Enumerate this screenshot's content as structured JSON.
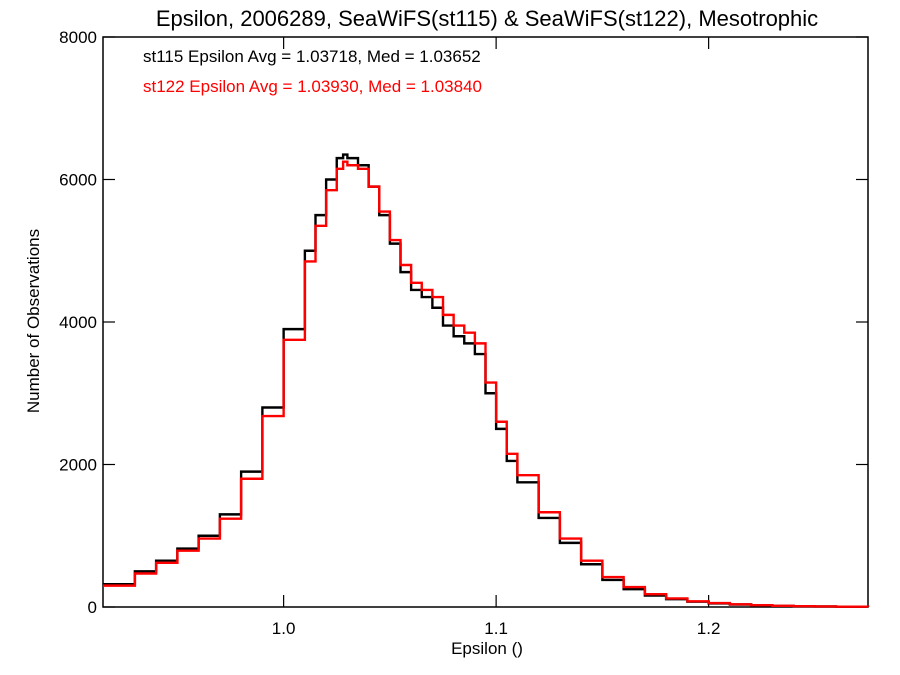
{
  "chart_data": {
    "type": "line",
    "title": "Epsilon, 2006289, SeaWiFS(st115) & SeaWiFS(st122), Mesotrophic",
    "xlabel": "Epsilon ()",
    "ylabel": "Number of Observations",
    "xlim": [
      0.915,
      1.275
    ],
    "ylim": [
      0,
      8000
    ],
    "x_ticks": [
      1.0,
      1.1,
      1.2
    ],
    "x_tick_labels": [
      "1.0",
      "1.1",
      "1.2"
    ],
    "y_ticks": [
      0,
      2000,
      4000,
      6000,
      8000
    ],
    "y_tick_labels": [
      "0",
      "2000",
      "4000",
      "6000",
      "8000"
    ],
    "grid": false,
    "legend_position": "top-left",
    "annotations": [
      {
        "text": "st115 Epsilon Avg = 1.03718, Med = 1.03652",
        "color": "#000000"
      },
      {
        "text": "st122 Epsilon Avg = 1.03930, Med = 1.03840",
        "color": "#ff0000"
      }
    ],
    "series": [
      {
        "color": "#000000",
        "x": [
          0.915,
          0.93,
          0.94,
          0.95,
          0.96,
          0.97,
          0.98,
          0.99,
          1.0,
          1.01,
          1.015,
          1.02,
          1.025,
          1.028,
          1.03,
          1.035,
          1.04,
          1.045,
          1.05,
          1.055,
          1.06,
          1.065,
          1.07,
          1.075,
          1.08,
          1.085,
          1.09,
          1.095,
          1.1,
          1.105,
          1.11,
          1.12,
          1.13,
          1.14,
          1.15,
          1.16,
          1.17,
          1.18,
          1.19,
          1.2,
          1.21,
          1.22,
          1.23,
          1.24,
          1.25,
          1.26,
          1.275
        ],
        "y": [
          320,
          500,
          650,
          820,
          1000,
          1300,
          1900,
          2800,
          3900,
          5000,
          5500,
          6000,
          6300,
          6350,
          6300,
          6200,
          5900,
          5500,
          5100,
          4700,
          4450,
          4350,
          4200,
          3950,
          3800,
          3700,
          3550,
          3000,
          2500,
          2050,
          1750,
          1250,
          900,
          600,
          380,
          250,
          160,
          110,
          75,
          50,
          35,
          25,
          15,
          10,
          8,
          5,
          3
        ]
      },
      {
        "color": "#ff0000",
        "x": [
          0.915,
          0.93,
          0.94,
          0.95,
          0.96,
          0.97,
          0.98,
          0.99,
          1.0,
          1.01,
          1.015,
          1.02,
          1.025,
          1.028,
          1.03,
          1.035,
          1.04,
          1.045,
          1.05,
          1.055,
          1.06,
          1.065,
          1.07,
          1.075,
          1.08,
          1.085,
          1.09,
          1.095,
          1.1,
          1.105,
          1.11,
          1.12,
          1.13,
          1.14,
          1.15,
          1.16,
          1.17,
          1.18,
          1.19,
          1.2,
          1.21,
          1.22,
          1.23,
          1.24,
          1.25,
          1.26,
          1.275
        ],
        "y": [
          300,
          470,
          620,
          790,
          960,
          1240,
          1800,
          2680,
          3750,
          4850,
          5350,
          5850,
          6150,
          6250,
          6200,
          6150,
          5900,
          5550,
          5150,
          4800,
          4550,
          4450,
          4350,
          4100,
          3950,
          3850,
          3700,
          3150,
          2600,
          2150,
          1850,
          1330,
          960,
          650,
          420,
          280,
          180,
          120,
          80,
          55,
          38,
          26,
          16,
          11,
          8,
          5,
          3
        ]
      }
    ]
  }
}
